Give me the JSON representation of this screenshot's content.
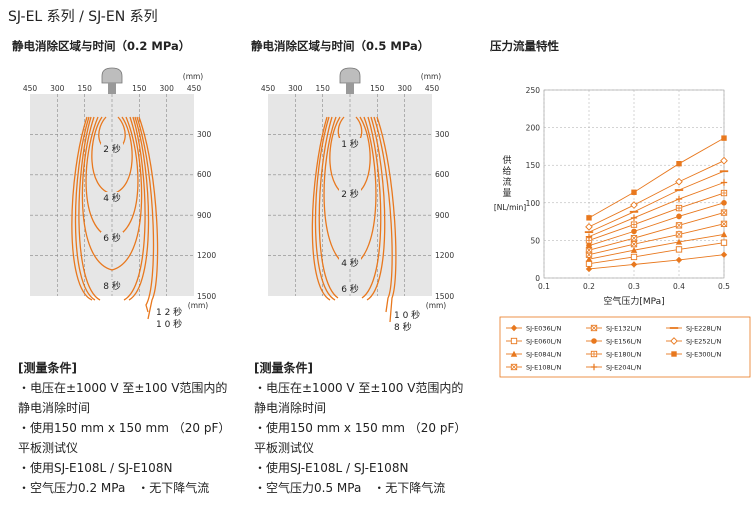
{
  "page_title": "SJ-EL 系列 / SJ-EN 系列",
  "colors": {
    "orange": "#e8781e",
    "grid": "#888888",
    "panel": "#e6e6e6"
  },
  "left_panel": {
    "title": "静电消除区域与时间（0.2 MPa）",
    "unit_top": "(mm)",
    "unit_right": "(mm)",
    "x_ticks": [
      "450",
      "300",
      "150",
      "0",
      "150",
      "300",
      "450"
    ],
    "y_ticks": [
      "300",
      "600",
      "900",
      "1200",
      "1500"
    ],
    "zone_labels": [
      "2 秒",
      "4 秒",
      "6 秒",
      "8 秒"
    ],
    "outer_labels": [
      "1 2 秒",
      "1 0 秒"
    ]
  },
  "middle_panel": {
    "title": "静电消除区域与时间（0.5 MPa）",
    "unit_top": "(mm)",
    "unit_right": "(mm)",
    "x_ticks": [
      "450",
      "300",
      "150",
      "0",
      "150",
      "300",
      "450"
    ],
    "y_ticks": [
      "300",
      "600",
      "900",
      "1200",
      "1500"
    ],
    "zone_labels": [
      "1 秒",
      "2 秒",
      "4 秒",
      "6 秒"
    ],
    "outer_labels": [
      "1 0 秒",
      "8 秒"
    ]
  },
  "conditions_left": {
    "header": "[测量条件]",
    "lines": [
      "・电压在±1000 V 至±100 V范围内的",
      "静电消除时间",
      "・使用150 mm x 150 mm （20 pF）",
      "平板测试仪",
      "・使用SJ-E108L / SJ-E108N",
      "・空气压力0.2 MPa　・无下降气流"
    ]
  },
  "conditions_mid": {
    "header": "[测量条件]",
    "lines": [
      "・电压在±1000 V 至±100 V范围内的",
      "静电消除时间",
      "・使用150 mm x 150 mm （20 pF）",
      "平板测试仪",
      "・使用SJ-E108L / SJ-E108N",
      "・空气压力0.5 MPa　・无下降气流"
    ]
  },
  "chart_data": {
    "type": "line",
    "title": "压力流量特性",
    "xlabel": "空气压力[MPa]",
    "ylabel": "供给流量\n[NL/min]",
    "ylabel_chars": [
      "供",
      "给",
      "流",
      "量"
    ],
    "ylabel_unit": "[NL/min]",
    "x": [
      0.2,
      0.3,
      0.4,
      0.5
    ],
    "xlim": [
      0.1,
      0.5
    ],
    "ylim": [
      0,
      250
    ],
    "x_ticks": [
      "0.1",
      "0.2",
      "0.3",
      "0.4",
      "0.5"
    ],
    "y_ticks": [
      "0",
      "50",
      "100",
      "150",
      "200",
      "250"
    ],
    "grid": true,
    "legend_position": "bottom",
    "series": [
      {
        "name": "SJ-E036L/N",
        "marker": "diamond-filled",
        "values": [
          12,
          18,
          24,
          31
        ]
      },
      {
        "name": "SJ-E060L/N",
        "marker": "square-open",
        "values": [
          19,
          28,
          38,
          47
        ]
      },
      {
        "name": "SJ-E084L/N",
        "marker": "triangle-filled",
        "values": [
          25,
          37,
          48,
          58
        ]
      },
      {
        "name": "SJ-E108L/N",
        "marker": "square-x",
        "values": [
          31,
          45,
          58,
          72
        ]
      },
      {
        "name": "SJ-E132L/N",
        "marker": "square-x",
        "values": [
          37,
          53,
          70,
          87
        ]
      },
      {
        "name": "SJ-E156L/N",
        "marker": "circle-filled",
        "values": [
          43,
          62,
          82,
          100
        ]
      },
      {
        "name": "SJ-E180L/N",
        "marker": "square-plus",
        "values": [
          50,
          71,
          93,
          113
        ]
      },
      {
        "name": "SJ-E204L/N",
        "marker": "plus",
        "values": [
          55,
          80,
          105,
          127
        ]
      },
      {
        "name": "SJ-E228L/N",
        "marker": "dash",
        "values": [
          61,
          88,
          117,
          142
        ]
      },
      {
        "name": "SJ-E252L/N",
        "marker": "diamond-open",
        "values": [
          68,
          97,
          128,
          156
        ]
      },
      {
        "name": "SJ-E300L/N",
        "marker": "square-filled",
        "values": [
          80,
          114,
          152,
          186
        ]
      }
    ]
  }
}
